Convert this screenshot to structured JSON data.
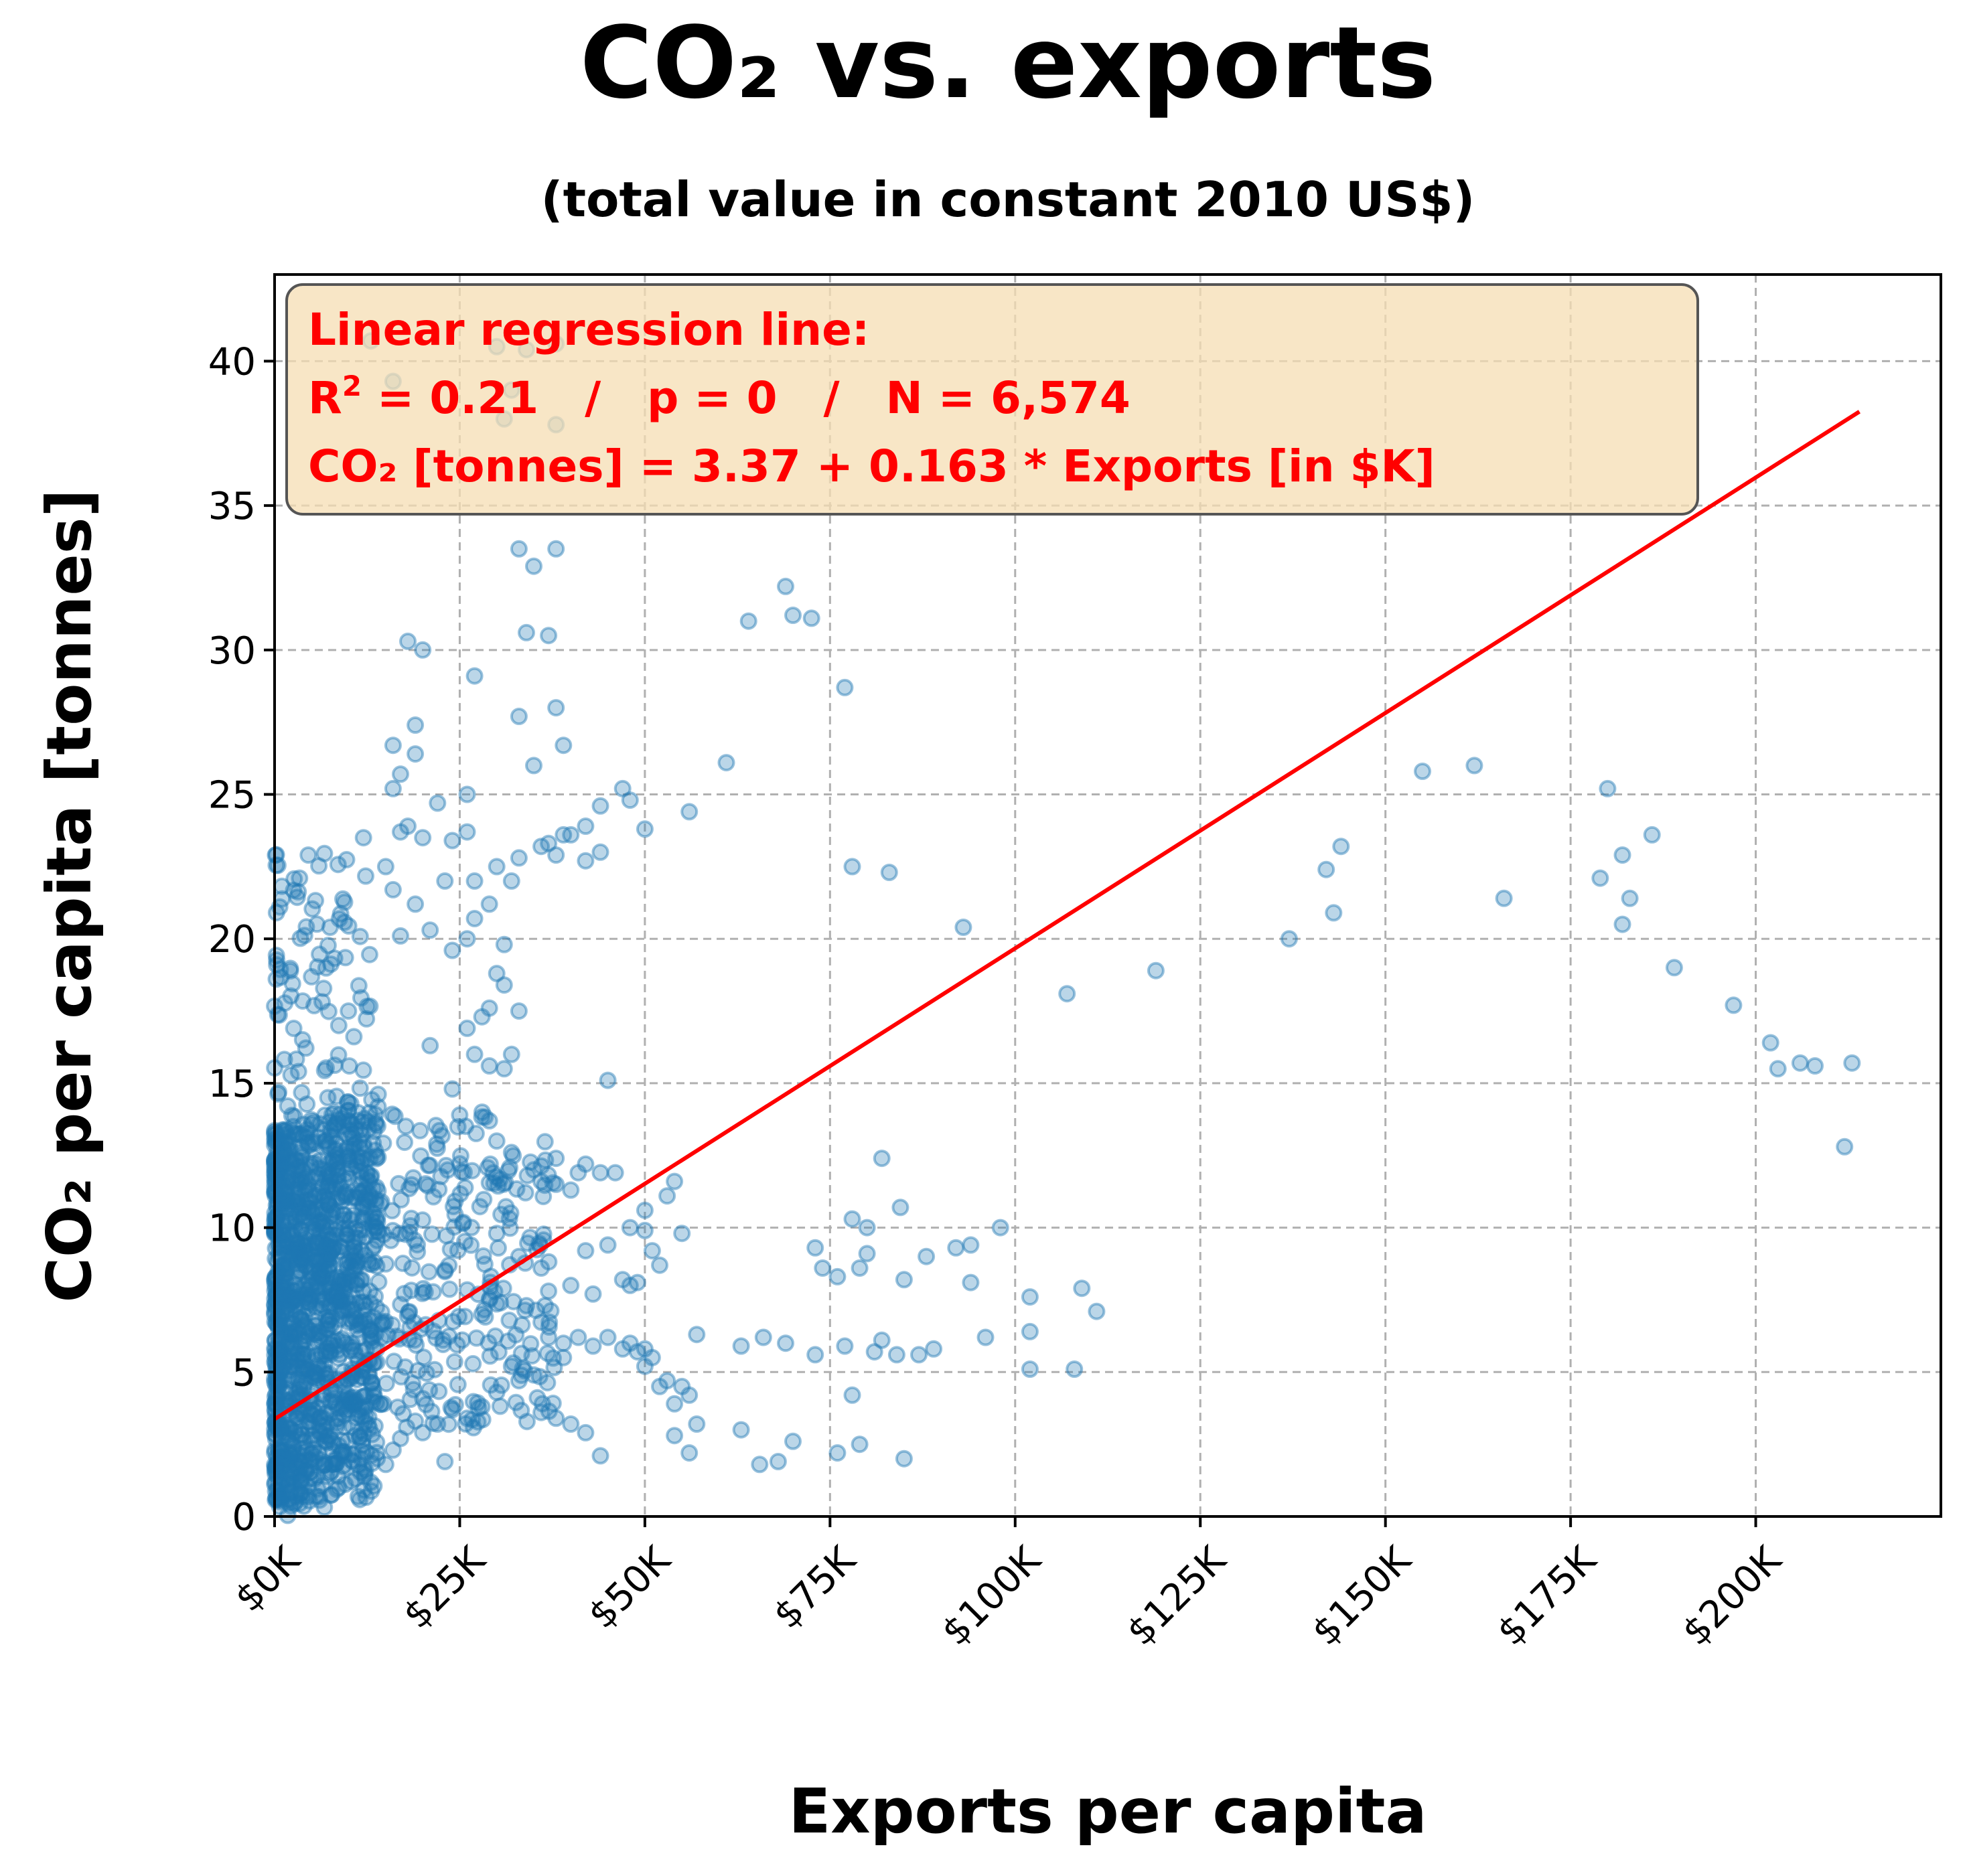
{
  "chart_data": {
    "type": "scatter",
    "title": "CO₂ vs. exports",
    "subtitle": "(total value in constant 2010 US$)",
    "xlabel": "Exports per capita",
    "ylabel": "CO₂ per capita [tonnes]",
    "xlim": [
      0,
      225
    ],
    "ylim": [
      0,
      43
    ],
    "x_ticks": [
      0,
      25,
      50,
      75,
      100,
      125,
      150,
      175,
      200
    ],
    "x_tick_labels": [
      "$0K",
      "$25K",
      "$50K",
      "$75K",
      "$100K",
      "$125K",
      "$150K",
      "$175K",
      "$200K"
    ],
    "y_ticks": [
      0,
      5,
      10,
      15,
      20,
      25,
      30,
      35,
      40
    ],
    "y_tick_labels": [
      "0",
      "5",
      "10",
      "15",
      "20",
      "25",
      "30",
      "35",
      "40"
    ],
    "grid": true,
    "point_color": "#1f77b4",
    "line_color": "#ff0000",
    "annotation": {
      "line1": "Linear regression line:",
      "r2_prefix": "R",
      "r2_sup": "2",
      "r2_rest": " = 0.21   /   p = 0   /   N = 6,574",
      "line3": "CO₂ [tonnes] = 3.37 + 0.163 * Exports [in $K]",
      "background": "#f5deb3",
      "text_color": "#ff0000"
    },
    "regression": {
      "intercept": 3.37,
      "slope": 0.163,
      "x_range": [
        0,
        214
      ]
    },
    "series": [
      {
        "points": [
          [
            69,
            32.2
          ],
          [
            70,
            31.2
          ],
          [
            72.5,
            31.1
          ],
          [
            64,
            31
          ],
          [
            77,
            28.7
          ],
          [
            61,
            26.1
          ],
          [
            56,
            24.4
          ],
          [
            78,
            22.5
          ],
          [
            83,
            22.3
          ],
          [
            93,
            20.4
          ],
          [
            119,
            18.9
          ],
          [
            107,
            18.1
          ],
          [
            82,
            12.4
          ],
          [
            84.5,
            10.7
          ],
          [
            78,
            10.3
          ],
          [
            98,
            10
          ],
          [
            80,
            10
          ],
          [
            73,
            9.3
          ],
          [
            80,
            9.1
          ],
          [
            88,
            9
          ],
          [
            92,
            9.3
          ],
          [
            94,
            9.4
          ],
          [
            74,
            8.6
          ],
          [
            79,
            8.6
          ],
          [
            85,
            8.2
          ],
          [
            94,
            8.1
          ],
          [
            76,
            8.3
          ],
          [
            66,
            6.2
          ],
          [
            69,
            6
          ],
          [
            82,
            6.1
          ],
          [
            81,
            5.7
          ],
          [
            77,
            5.9
          ],
          [
            89,
            5.8
          ],
          [
            96,
            6.2
          ],
          [
            102,
            6.4
          ],
          [
            84,
            5.6
          ],
          [
            87,
            5.6
          ],
          [
            73,
            5.6
          ],
          [
            63,
            5.9
          ],
          [
            57,
            6.3
          ],
          [
            102,
            7.6
          ],
          [
            109,
            7.9
          ],
          [
            111,
            7.1
          ],
          [
            102,
            5.1
          ],
          [
            108,
            5.1
          ],
          [
            78,
            4.2
          ],
          [
            70,
            2.6
          ],
          [
            63,
            3
          ],
          [
            65.5,
            1.8
          ],
          [
            68,
            1.9
          ],
          [
            76,
            2.2
          ],
          [
            79,
            2.5
          ],
          [
            85,
            2
          ],
          [
            137,
            20
          ],
          [
            142,
            22.4
          ],
          [
            143,
            20.9
          ],
          [
            144,
            23.2
          ],
          [
            155,
            25.8
          ],
          [
            162,
            26
          ],
          [
            166,
            21.4
          ],
          [
            180,
            25.2
          ],
          [
            179,
            22.1
          ],
          [
            182,
            22.9
          ],
          [
            182,
            20.5
          ],
          [
            183,
            21.4
          ],
          [
            186,
            23.6
          ],
          [
            189,
            19
          ],
          [
            197,
            17.7
          ],
          [
            202,
            16.4
          ],
          [
            203,
            15.5
          ],
          [
            206,
            15.7
          ],
          [
            208,
            15.6
          ],
          [
            213,
            15.7
          ],
          [
            212,
            12.8
          ],
          [
            33,
            33.5
          ],
          [
            38,
            33.5
          ],
          [
            35,
            32.9
          ],
          [
            34,
            30.6
          ],
          [
            37,
            30.5
          ],
          [
            20,
            30
          ],
          [
            18,
            30.3
          ],
          [
            27,
            29.1
          ],
          [
            38,
            28
          ],
          [
            33,
            27.7
          ],
          [
            39,
            26.7
          ],
          [
            35,
            26
          ],
          [
            19,
            27.4
          ],
          [
            19,
            26.4
          ],
          [
            16,
            26.7
          ],
          [
            26,
            25
          ],
          [
            47,
            25.2
          ],
          [
            48,
            24.8
          ],
          [
            44,
            24.6
          ],
          [
            50,
            23.8
          ],
          [
            22,
            24.7
          ],
          [
            17,
            25.7
          ],
          [
            16,
            25.2
          ],
          [
            24,
            23.4
          ],
          [
            26,
            23.7
          ],
          [
            39,
            23.6
          ],
          [
            40,
            23.6
          ],
          [
            42,
            23.9
          ],
          [
            36,
            23.2
          ],
          [
            37,
            23.3
          ],
          [
            38,
            22.9
          ],
          [
            42,
            22.7
          ],
          [
            44,
            23
          ],
          [
            33,
            22.8
          ],
          [
            30,
            22.5
          ],
          [
            32,
            22
          ],
          [
            23,
            22
          ],
          [
            12,
            23.5
          ],
          [
            15,
            22.5
          ],
          [
            17,
            23.7
          ],
          [
            18,
            23.9
          ],
          [
            20,
            23.5
          ],
          [
            16,
            21.7
          ],
          [
            19,
            21.2
          ],
          [
            21,
            20.3
          ],
          [
            27,
            22
          ],
          [
            27,
            20.7
          ],
          [
            29,
            21.2
          ],
          [
            31,
            19.8
          ],
          [
            26,
            20
          ],
          [
            17,
            20.1
          ],
          [
            24,
            19.6
          ],
          [
            30,
            18.8
          ],
          [
            31,
            18.4
          ],
          [
            29,
            17.6
          ],
          [
            33,
            17.5
          ],
          [
            28,
            17.3
          ],
          [
            21,
            16.3
          ],
          [
            26,
            16.9
          ],
          [
            27,
            16
          ],
          [
            32,
            16
          ],
          [
            29,
            15.6
          ],
          [
            31,
            15.5
          ],
          [
            24,
            14.8
          ],
          [
            45,
            15.1
          ],
          [
            25,
            13.9
          ],
          [
            29,
            13.7
          ],
          [
            30,
            13
          ],
          [
            32,
            12.6
          ],
          [
            38,
            12.4
          ],
          [
            44,
            11.9
          ],
          [
            46,
            11.9
          ],
          [
            42,
            12.2
          ],
          [
            35,
            12
          ],
          [
            36,
            11.6
          ],
          [
            38,
            11.5
          ],
          [
            40,
            11.3
          ],
          [
            41,
            11.9
          ],
          [
            54,
            11.6
          ],
          [
            53,
            11.1
          ],
          [
            50,
            10.6
          ],
          [
            55,
            9.8
          ],
          [
            48,
            10
          ],
          [
            51,
            9.2
          ],
          [
            52,
            8.7
          ],
          [
            50,
            9.9
          ],
          [
            45,
            9.4
          ],
          [
            42,
            9.2
          ],
          [
            40,
            8
          ],
          [
            47,
            8.2
          ],
          [
            48,
            8
          ],
          [
            49,
            8.1
          ],
          [
            43,
            7.7
          ],
          [
            37,
            7.8
          ],
          [
            36,
            8.6
          ],
          [
            33,
            9
          ],
          [
            34,
            7.3
          ],
          [
            30,
            9.8
          ],
          [
            29,
            7.5
          ],
          [
            28,
            7
          ],
          [
            37,
            6.2
          ],
          [
            39,
            6
          ],
          [
            41,
            6.2
          ],
          [
            43,
            5.9
          ],
          [
            45,
            6.2
          ],
          [
            47,
            5.8
          ],
          [
            49,
            5.7
          ],
          [
            51,
            5.5
          ],
          [
            53,
            4.7
          ],
          [
            55,
            4.5
          ],
          [
            56,
            4.2
          ],
          [
            54,
            3.9
          ],
          [
            52,
            4.5
          ],
          [
            50,
            5.2
          ],
          [
            48,
            6
          ],
          [
            39,
            5.5
          ],
          [
            35,
            4.9
          ],
          [
            33,
            4.7
          ],
          [
            32,
            5.2
          ],
          [
            30,
            4.3
          ],
          [
            28,
            3.8
          ],
          [
            26,
            3.4
          ],
          [
            24,
            3.7
          ],
          [
            22,
            3.2
          ],
          [
            20,
            2.9
          ],
          [
            19,
            3.3
          ],
          [
            23,
            1.9
          ],
          [
            16,
            2.3
          ],
          [
            17,
            2.7
          ],
          [
            15,
            1.8
          ],
          [
            36,
            3.6
          ],
          [
            38,
            3.4
          ],
          [
            40,
            3.2
          ],
          [
            42,
            2.9
          ],
          [
            44,
            2.1
          ],
          [
            54,
            2.8
          ],
          [
            56,
            2.2
          ],
          [
            57,
            3.2
          ],
          [
            50,
            5.8
          ],
          [
            31,
            38
          ],
          [
            34,
            40.4
          ],
          [
            38,
            37.8
          ],
          [
            38,
            40.6
          ],
          [
            30,
            40.5
          ],
          [
            13,
            40.7
          ],
          [
            16,
            39.3
          ],
          [
            32,
            39
          ]
        ]
      }
    ]
  }
}
